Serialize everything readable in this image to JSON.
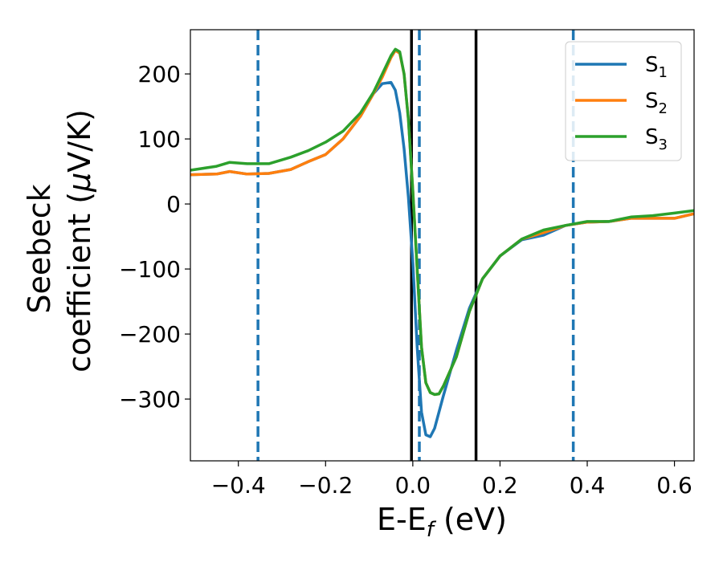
{
  "chart_data": {
    "type": "line",
    "xlabel": {
      "main": "E-E",
      "sub": "f",
      "tail": " (eV)"
    },
    "ylabel": {
      "line1": "Seebeck",
      "line2_pre": "coefficient  (",
      "mu": "μ",
      "line2_post": "V/K)"
    },
    "xlim": [
      -0.51,
      0.645
    ],
    "ylim": [
      -395,
      268
    ],
    "x_ticks": [
      -0.4,
      -0.2,
      0.0,
      0.2,
      0.4,
      0.6
    ],
    "x_tick_labels": [
      "−0.4",
      "−0.2",
      "0.0",
      "0.2",
      "0.4",
      "0.6"
    ],
    "y_ticks": [
      200,
      100,
      0,
      -100,
      -200,
      -300
    ],
    "y_tick_labels": [
      "200",
      "100",
      "0",
      "−100",
      "−200",
      "−300"
    ],
    "legend_position": "top-right",
    "vertical_lines": [
      {
        "x": -0.355,
        "style": "dashed",
        "color": "#1f77b4"
      },
      {
        "x": 0.015,
        "style": "dashed",
        "color": "#1f77b4"
      },
      {
        "x": 0.368,
        "style": "dashed",
        "color": "#1f77b4"
      },
      {
        "x": -0.003,
        "style": "solid",
        "color": "#000000"
      },
      {
        "x": 0.145,
        "style": "solid",
        "color": "#000000"
      }
    ],
    "series": [
      {
        "name": {
          "base": "S",
          "sub": "1"
        },
        "color": "#1f77b4",
        "x": [
          -0.51,
          -0.45,
          -0.42,
          -0.38,
          -0.33,
          -0.28,
          -0.24,
          -0.2,
          -0.16,
          -0.12,
          -0.09,
          -0.07,
          -0.05,
          -0.04,
          -0.03,
          -0.02,
          -0.01,
          0.0,
          0.01,
          0.02,
          0.03,
          0.04,
          0.05,
          0.07,
          0.1,
          0.13,
          0.16,
          0.2,
          0.25,
          0.3,
          0.35,
          0.4,
          0.45,
          0.5,
          0.55,
          0.6,
          0.645
        ],
        "y": [
          45,
          46,
          50,
          46,
          47,
          53,
          65,
          76,
          100,
          135,
          170,
          185,
          187,
          175,
          140,
          85,
          10,
          -90,
          -220,
          -320,
          -355,
          -358,
          -345,
          -295,
          -225,
          -160,
          -115,
          -80,
          -55,
          -48,
          -33,
          -28,
          -27,
          -22,
          -22,
          -22,
          -15
        ]
      },
      {
        "name": {
          "base": "S",
          "sub": "2"
        },
        "color": "#ff7f0e",
        "x": [
          -0.51,
          -0.45,
          -0.42,
          -0.38,
          -0.33,
          -0.28,
          -0.24,
          -0.2,
          -0.16,
          -0.12,
          -0.09,
          -0.07,
          -0.05,
          -0.04,
          -0.03,
          -0.02,
          -0.01,
          0.0,
          0.01,
          0.02,
          0.03,
          0.04,
          0.05,
          0.06,
          0.07,
          0.1,
          0.13,
          0.16,
          0.2,
          0.25,
          0.3,
          0.35,
          0.4,
          0.45,
          0.5,
          0.55,
          0.6,
          0.645
        ],
        "y": [
          45,
          46,
          50,
          46,
          47,
          53,
          65,
          76,
          100,
          135,
          170,
          195,
          225,
          236,
          232,
          200,
          130,
          20,
          -100,
          -220,
          -275,
          -290,
          -293,
          -292,
          -280,
          -235,
          -165,
          -115,
          -80,
          -54,
          -44,
          -33,
          -28,
          -27,
          -22,
          -22,
          -22,
          -15
        ]
      },
      {
        "name": {
          "base": "S",
          "sub": "3"
        },
        "color": "#2ca02c",
        "x": [
          -0.51,
          -0.45,
          -0.42,
          -0.38,
          -0.33,
          -0.28,
          -0.24,
          -0.2,
          -0.16,
          -0.12,
          -0.09,
          -0.07,
          -0.05,
          -0.04,
          -0.03,
          -0.02,
          -0.01,
          0.0,
          0.01,
          0.02,
          0.03,
          0.04,
          0.05,
          0.06,
          0.07,
          0.1,
          0.13,
          0.16,
          0.2,
          0.25,
          0.3,
          0.35,
          0.4,
          0.45,
          0.5,
          0.55,
          0.6,
          0.645
        ],
        "y": [
          52,
          58,
          64,
          62,
          62,
          72,
          82,
          95,
          112,
          140,
          172,
          200,
          228,
          238,
          234,
          200,
          130,
          20,
          -100,
          -220,
          -275,
          -290,
          -293,
          -292,
          -280,
          -235,
          -165,
          -115,
          -80,
          -54,
          -40,
          -33,
          -27,
          -27,
          -20,
          -18,
          -14,
          -10
        ]
      }
    ]
  }
}
